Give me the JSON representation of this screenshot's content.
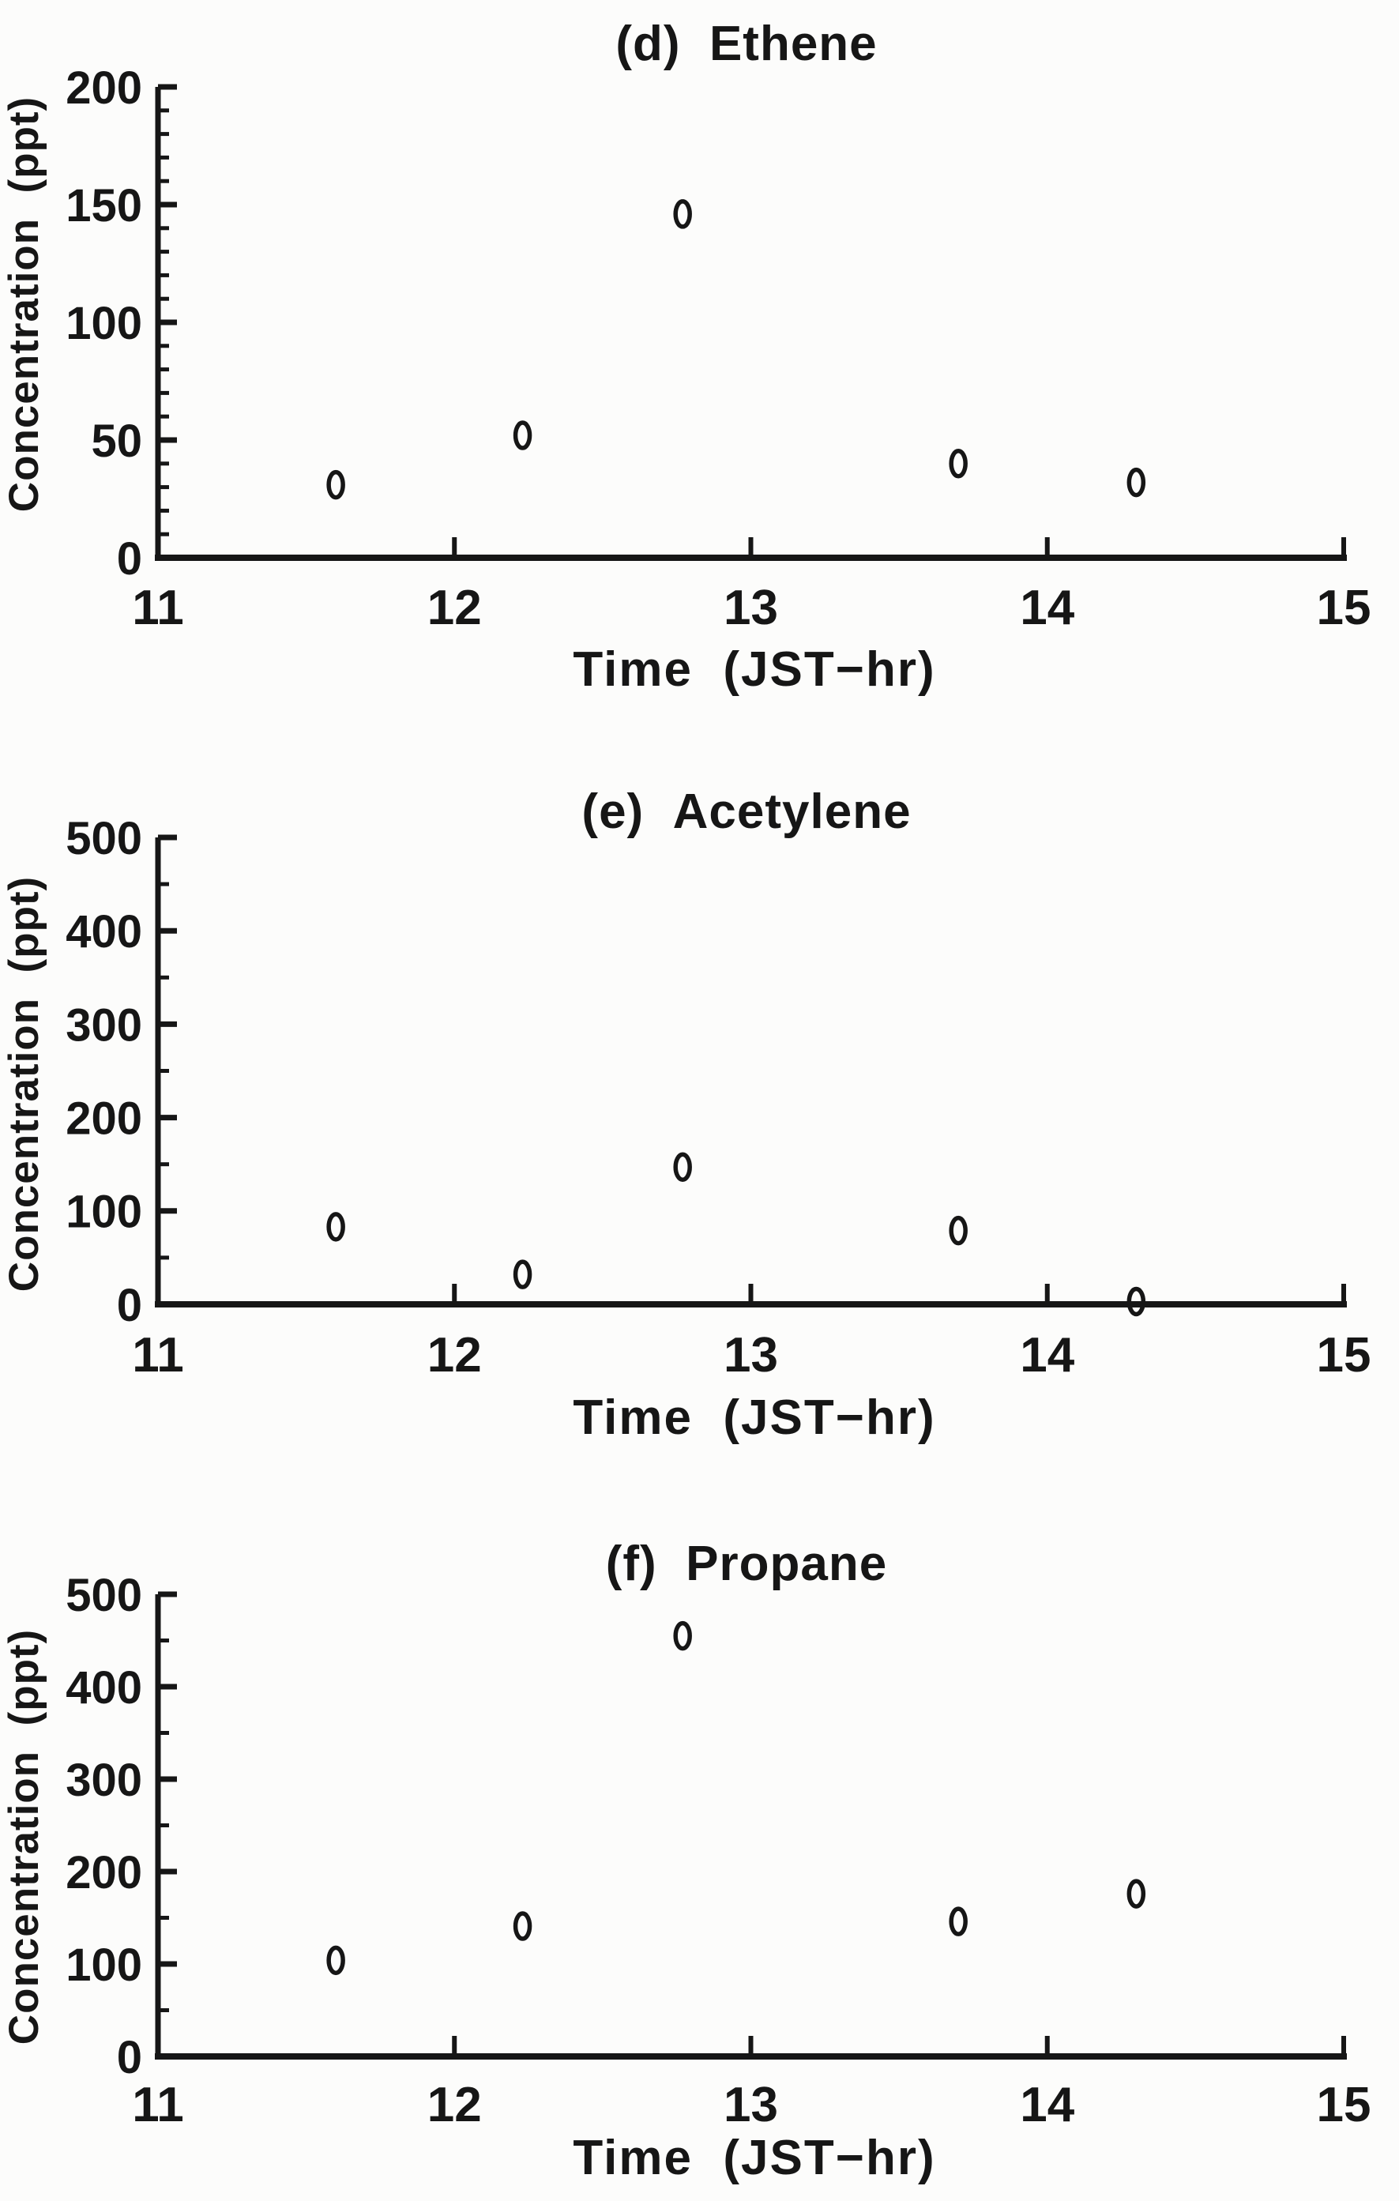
{
  "page": {
    "background": "#fcfcfb",
    "ink": "#161616",
    "figure_type": "scanned scatter plot panels"
  },
  "chart_data": [
    {
      "type": "scatter",
      "panel_letter": "d",
      "compound": "Ethene",
      "title": "(d)  Ethene",
      "xlabel": "Time  (JST−hr)",
      "ylabel": "Concentration  (ppt)",
      "xlim": [
        11,
        15
      ],
      "ylim": [
        0,
        200
      ],
      "x_major_ticks": [
        11,
        12,
        13,
        14,
        15
      ],
      "y_major_ticks": [
        0,
        50,
        100,
        150,
        200
      ],
      "y_minor_step": 10,
      "grid": false,
      "legend": null,
      "marker": "open-ellipse",
      "marker_color": "#161616",
      "x": [
        11.6,
        12.23,
        12.77,
        13.7,
        14.3
      ],
      "y": [
        31,
        52,
        146,
        40,
        32
      ]
    },
    {
      "type": "scatter",
      "panel_letter": "e",
      "compound": "Acetylene",
      "title": "(e)  Acetylene",
      "xlabel": "Time  (JST−hr)",
      "ylabel": "Concentration  (ppt)",
      "xlim": [
        11,
        15
      ],
      "ylim": [
        0,
        500
      ],
      "x_major_ticks": [
        11,
        12,
        13,
        14,
        15
      ],
      "y_major_ticks": [
        0,
        100,
        200,
        300,
        400,
        500
      ],
      "y_minor_step": 50,
      "grid": false,
      "legend": null,
      "marker": "open-ellipse",
      "marker_color": "#161616",
      "x": [
        11.6,
        12.23,
        12.77,
        13.7,
        14.3
      ],
      "y": [
        83,
        32,
        147,
        79,
        3
      ]
    },
    {
      "type": "scatter",
      "panel_letter": "f",
      "compound": "Propane",
      "title": "(f)  Propane",
      "xlabel": "Time  (JST−hr)",
      "ylabel": "Concentration  (ppt)",
      "xlim": [
        11,
        15
      ],
      "ylim": [
        0,
        500
      ],
      "x_major_ticks": [
        11,
        12,
        13,
        14,
        15
      ],
      "y_major_ticks": [
        0,
        100,
        200,
        300,
        400,
        500
      ],
      "y_minor_step": 50,
      "grid": false,
      "legend": null,
      "marker": "open-ellipse",
      "marker_color": "#161616",
      "x": [
        11.6,
        12.23,
        12.77,
        13.7,
        14.3
      ],
      "y": [
        104,
        141,
        455,
        146,
        176
      ]
    }
  ]
}
